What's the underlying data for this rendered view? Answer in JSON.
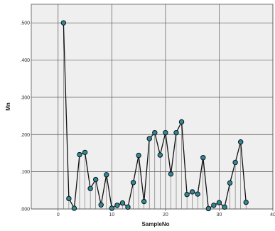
{
  "chart_data": {
    "type": "line",
    "xlabel": "SampleNo",
    "ylabel": "Mn",
    "xlim": [
      -5,
      40
    ],
    "ylim": [
      0,
      0.55
    ],
    "x_ticks": [
      0,
      10,
      20,
      30,
      40
    ],
    "x_tick_labels": [
      "0",
      "10",
      "20",
      "30",
      "40"
    ],
    "y_ticks": [
      0,
      0.1,
      0.2,
      0.3,
      0.4,
      0.5
    ],
    "y_tick_labels": [
      ".000",
      ".100",
      ".200",
      ".300",
      ".400",
      ".500"
    ],
    "grid": true,
    "drop_lines": true,
    "marker_color": "#2e8a9a",
    "line_color": "#111111",
    "plot_background": "#efefef",
    "series": [
      {
        "x": [
          1,
          2,
          3,
          4,
          5,
          6,
          7,
          8,
          9,
          10,
          11,
          12,
          13,
          14,
          15,
          16,
          17,
          18,
          19,
          20,
          21,
          22,
          23,
          24,
          25,
          26,
          27,
          28,
          29,
          30,
          31,
          32,
          33,
          34,
          35
        ],
        "values": [
          0.5,
          0.028,
          0.002,
          0.146,
          0.152,
          0.055,
          0.079,
          0.011,
          0.092,
          0.002,
          0.01,
          0.016,
          0.005,
          0.071,
          0.144,
          0.02,
          0.189,
          0.205,
          0.145,
          0.205,
          0.094,
          0.205,
          0.234,
          0.039,
          0.046,
          0.04,
          0.138,
          0.001,
          0.01,
          0.017,
          0.005,
          0.07,
          0.125,
          0.18,
          0.018
        ]
      }
    ]
  }
}
